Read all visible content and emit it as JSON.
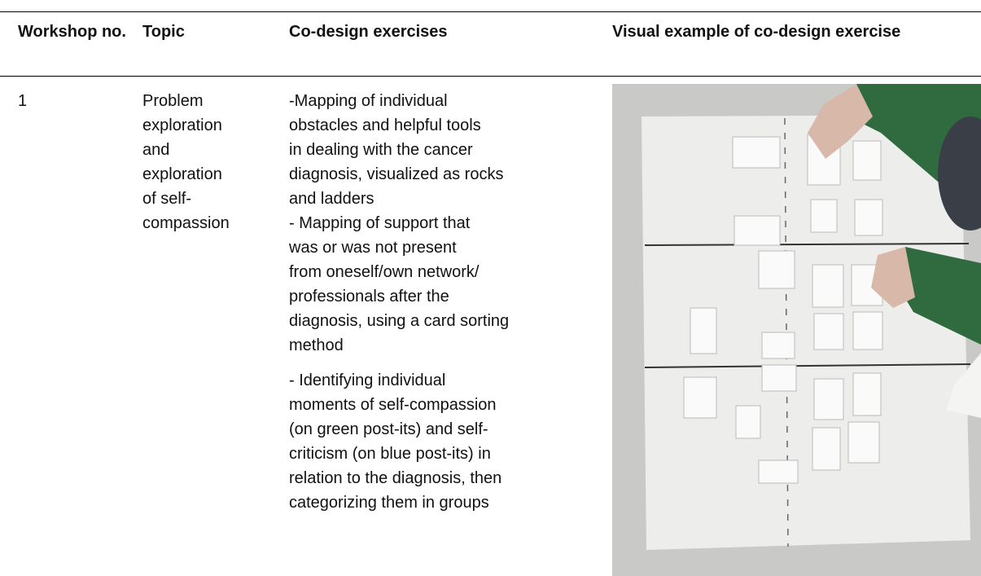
{
  "table": {
    "headers": [
      "Workshop no.",
      "Topic",
      "Co-design exercises",
      "Visual example of co-design exercise"
    ],
    "rows": [
      {
        "workshop": "1",
        "topic": [
          "Problem",
          "exploration",
          "and",
          "exploration",
          "of self-",
          "compassion"
        ],
        "exercises": [
          [
            "-Mapping of individual",
            "obstacles and helpful tools",
            "in dealing with the cancer",
            "diagnosis, visualized as rocks",
            "and ladders",
            "- Mapping of support that",
            "was or was not present",
            "from oneself/own network/",
            "professionals after the",
            "diagnosis, using a card sorting",
            "method"
          ],
          [
            "- Identifying individual",
            "moments of self-compassion",
            "(on green post-its) and self-",
            "criticism (on blue post-its) in",
            "relation to the diagnosis, then",
            "categorizing them in groups"
          ]
        ]
      }
    ]
  }
}
